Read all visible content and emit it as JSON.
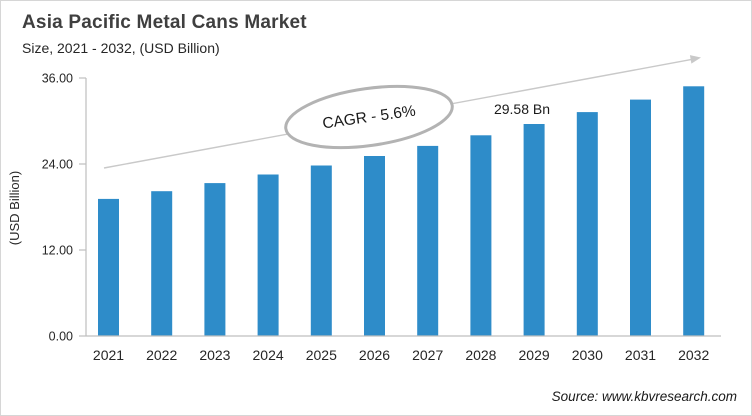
{
  "chart_data": {
    "type": "bar",
    "title": "Asia Pacific Metal Cans Market",
    "subtitle": "Size, 2021 - 2032, (USD Billion)",
    "ylabel": "(USD Billion)",
    "categories": [
      "2021",
      "2022",
      "2023",
      "2024",
      "2025",
      "2026",
      "2027",
      "2028",
      "2029",
      "2030",
      "2031",
      "2032"
    ],
    "values": [
      19.13,
      20.2,
      21.33,
      22.53,
      23.79,
      25.12,
      26.53,
      28.01,
      29.58,
      31.24,
      32.99,
      34.84
    ],
    "ylim": [
      0,
      36
    ],
    "ytick_values": [
      0,
      12,
      24,
      36
    ],
    "ytick_labels": [
      "0.00",
      "12.00",
      "24.00",
      "36.00"
    ],
    "grid": false,
    "legend": false,
    "colors": {
      "bar": "#2E8CC9",
      "axis": "#BFBFBF",
      "trend_arrow": "#C9C9C9",
      "ellipse_stroke": "#B3B3B3"
    },
    "annotations": {
      "cagr_label": "CAGR - 5.6%",
      "value_label": "29.58 Bn",
      "value_label_year": "2029"
    },
    "source": "Source: www.kbvresearch.com"
  }
}
